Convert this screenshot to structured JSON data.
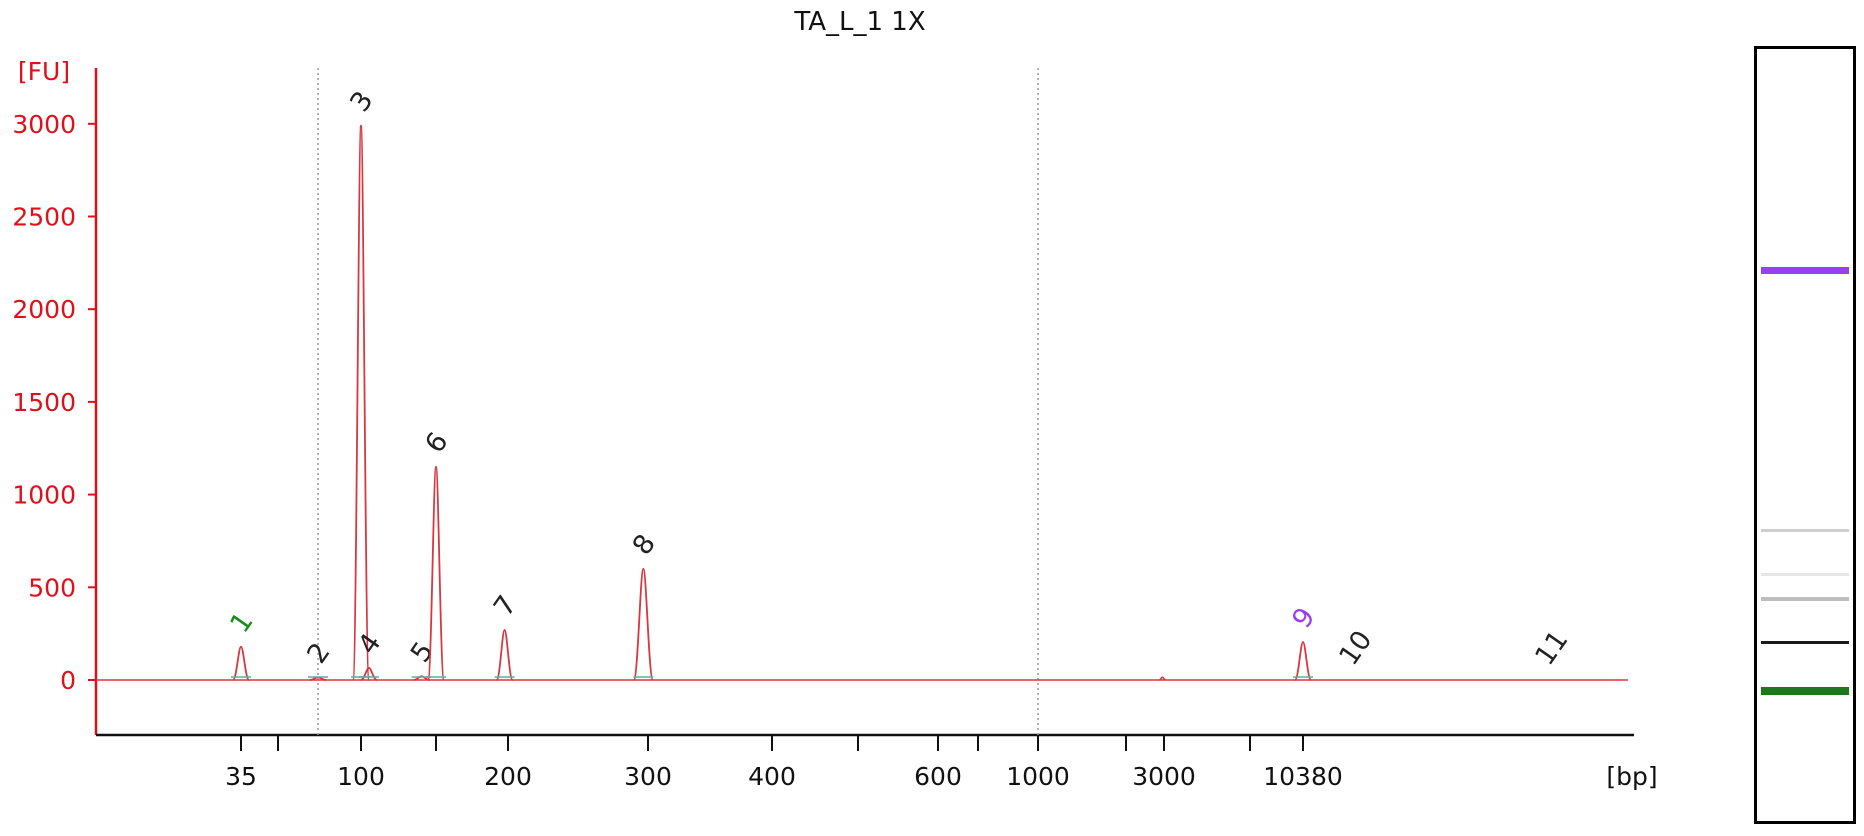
{
  "chart_data": {
    "type": "line",
    "title": "TA_L_1 1X",
    "ylabel": "[FU]",
    "xlabel": "[bp]",
    "ylim": [
      -300,
      3300
    ],
    "y_ticks": [
      0,
      500,
      1000,
      1500,
      2000,
      2500,
      3000
    ],
    "x_scale": "piecewise (electropherogram migration time)",
    "x_tick_labels": [
      "35",
      "100",
      "200",
      "300",
      "400",
      "600",
      "1000",
      "3000",
      "10380"
    ],
    "colors": {
      "axis": "#e0101a",
      "trace": "#d9363e",
      "lower_marker": "#1a8a1a",
      "upper_marker": "#9a3ff0",
      "peak_label": "#222222",
      "guide_line": "#9a9a9a"
    },
    "peaks": [
      {
        "label": "1",
        "bp": 35,
        "fu": 180,
        "color": "green"
      },
      {
        "label": "2",
        "bp": 75,
        "fu": 15,
        "color": "black"
      },
      {
        "label": "3",
        "bp": 100,
        "fu": 2990,
        "color": "black"
      },
      {
        "label": "4",
        "bp": 104,
        "fu": 65,
        "color": "black"
      },
      {
        "label": "5",
        "bp": 135,
        "fu": 20,
        "color": "black"
      },
      {
        "label": "6",
        "bp": 145,
        "fu": 1150,
        "color": "black"
      },
      {
        "label": "7",
        "bp": 197,
        "fu": 270,
        "color": "black"
      },
      {
        "label": "8",
        "bp": 296,
        "fu": 600,
        "color": "black"
      },
      {
        "label": "9",
        "bp": 10380,
        "fu": 205,
        "color": "purple"
      },
      {
        "label": "10",
        "bp": 12500,
        "fu": 5,
        "color": "black"
      },
      {
        "label": "11",
        "bp": 40000,
        "fu": 5,
        "color": "black"
      }
    ],
    "minor_peaks": [
      {
        "bp": 2950,
        "fu": 15
      }
    ],
    "grid": false
  },
  "gel": {
    "bands": [
      {
        "name": "upper-marker-band",
        "color": "#9a3ff0",
        "intensity": 1.0
      },
      {
        "name": "band-8",
        "color": "#cfcfcf",
        "intensity": 0.3
      },
      {
        "name": "band-7",
        "color": "#e6e6e6",
        "intensity": 0.2
      },
      {
        "name": "band-6",
        "color": "#bdbdbd",
        "intensity": 0.35
      },
      {
        "name": "band-3",
        "color": "#1a1a1a",
        "intensity": 0.9
      },
      {
        "name": "lower-marker-band",
        "color": "#1a7a1a",
        "intensity": 1.0
      }
    ]
  }
}
